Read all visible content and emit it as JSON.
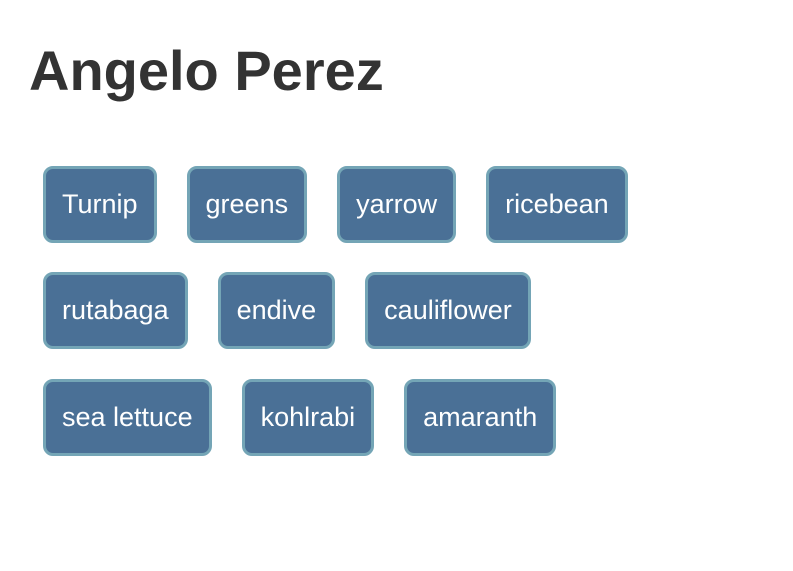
{
  "header": {
    "title": "Angelo Perez"
  },
  "tag_rows": [
    [
      "Turnip",
      "greens",
      "yarrow",
      "ricebean"
    ],
    [
      "rutabaga",
      "endive",
      "cauliflower"
    ],
    [
      "sea lettuce",
      "kohlrabi",
      "amaranth"
    ]
  ],
  "colors": {
    "title_text": "#333333",
    "button_fill": "#4a7096",
    "button_border": "#74a5b6",
    "button_text": "#ffffff",
    "background": "#ffffff"
  }
}
